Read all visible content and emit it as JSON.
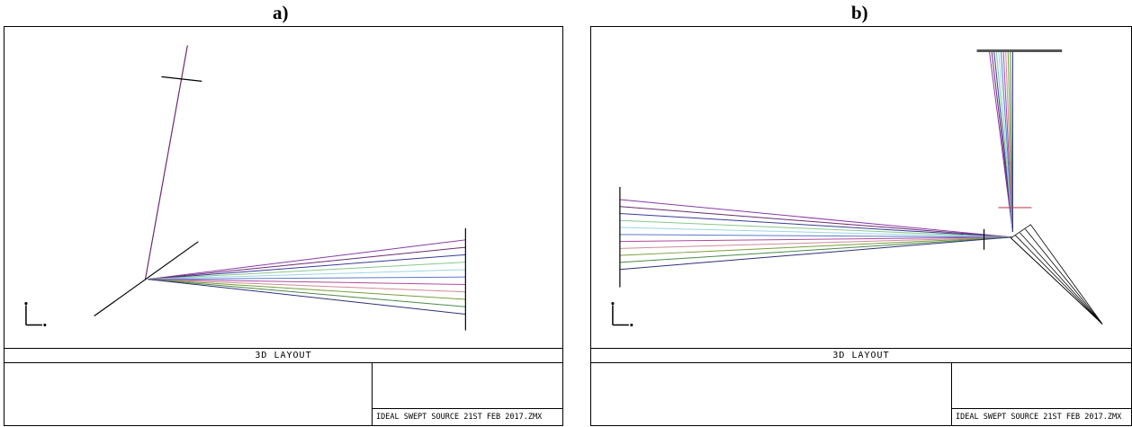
{
  "panels": [
    {
      "label": "a)",
      "layout_title": "3D LAYOUT",
      "filename": "IDEAL SWEPT SOURCE 21ST FEB 2017.ZMX"
    },
    {
      "label": "b)",
      "layout_title": "3D LAYOUT",
      "filename": "IDEAL SWEPT SOURCE 21ST FEB 2017.ZMX"
    }
  ],
  "ray_colors": [
    "#8b3aa8",
    "#6a2c6e",
    "#3a3a9a",
    "#86c88c",
    "#9ad6e6",
    "#5a7bd0",
    "#b04aa0",
    "#d08a9a",
    "#7a9e3a",
    "#4a8a4a",
    "#2e2e7a"
  ],
  "icons": {
    "axis": "axis-triad-icon"
  }
}
